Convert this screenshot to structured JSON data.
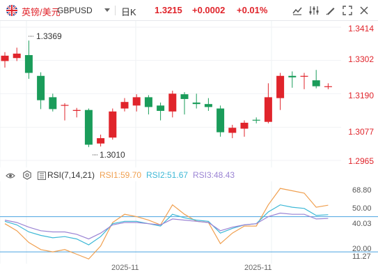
{
  "header": {
    "pair_name": "英镑/美元",
    "pair_code": "GBPUSD",
    "period": "日K",
    "price": "1.3215",
    "change": "+0.0002",
    "percent": "+0.01%",
    "tools": [
      "chart-type-icon",
      "settings-sliders-icon",
      "drawing-icon",
      "fullscreen-icon",
      "close-icon"
    ]
  },
  "price_axis": {
    "labels": [
      "1.3414",
      "1.3302",
      "1.3190",
      "1.3077",
      "1.2965"
    ]
  },
  "annotations": {
    "high": "1.3369",
    "low": "1.3010"
  },
  "rsi": {
    "title": "RSI(7,14,21)",
    "rsi1": "RSI1:59.70",
    "rsi2": "RSI2:51.67",
    "rsi3": "RSI3:48.43",
    "axis_labels": [
      "68.80",
      "50.00",
      "40.03",
      "20.00",
      "11.27"
    ]
  },
  "dates": [
    "2025-11",
    "2025-11"
  ],
  "colors": {
    "up": "#e0242b",
    "down": "#1a9c5a",
    "rsi1": "#f0a050",
    "rsi2": "#3db8d6",
    "rsi3": "#9b84d4",
    "guide": "#4aa3e0"
  },
  "chart_data": {
    "type": "candlestick",
    "price_ylim": [
      1.2965,
      1.3414
    ],
    "candles": [
      {
        "o": 1.33,
        "h": 1.333,
        "l": 1.3278,
        "c": 1.3318
      },
      {
        "o": 1.331,
        "h": 1.3345,
        "l": 1.33,
        "c": 1.3325
      },
      {
        "o": 1.332,
        "h": 1.3369,
        "l": 1.324,
        "c": 1.326
      },
      {
        "o": 1.325,
        "h": 1.3262,
        "l": 1.3138,
        "c": 1.3168
      },
      {
        "o": 1.3178,
        "h": 1.319,
        "l": 1.313,
        "c": 1.3138
      },
      {
        "o": 1.315,
        "h": 1.3158,
        "l": 1.31,
        "c": 1.3152
      },
      {
        "o": 1.3132,
        "h": 1.3142,
        "l": 1.311,
        "c": 1.3135
      },
      {
        "o": 1.3135,
        "h": 1.314,
        "l": 1.301,
        "c": 1.3018
      },
      {
        "o": 1.3022,
        "h": 1.3052,
        "l": 1.3012,
        "c": 1.304
      },
      {
        "o": 1.3042,
        "h": 1.314,
        "l": 1.3035,
        "c": 1.313
      },
      {
        "o": 1.314,
        "h": 1.3175,
        "l": 1.313,
        "c": 1.3162
      },
      {
        "o": 1.315,
        "h": 1.3188,
        "l": 1.313,
        "c": 1.3178
      },
      {
        "o": 1.3178,
        "h": 1.3185,
        "l": 1.312,
        "c": 1.3145
      },
      {
        "o": 1.315,
        "h": 1.316,
        "l": 1.31,
        "c": 1.3132
      },
      {
        "o": 1.313,
        "h": 1.32,
        "l": 1.311,
        "c": 1.319
      },
      {
        "o": 1.3188,
        "h": 1.3195,
        "l": 1.312,
        "c": 1.3172
      },
      {
        "o": 1.316,
        "h": 1.319,
        "l": 1.314,
        "c": 1.3155
      },
      {
        "o": 1.3155,
        "h": 1.3175,
        "l": 1.3132,
        "c": 1.3145
      },
      {
        "o": 1.314,
        "h": 1.315,
        "l": 1.3045,
        "c": 1.306
      },
      {
        "o": 1.3058,
        "h": 1.3085,
        "l": 1.304,
        "c": 1.3075
      },
      {
        "o": 1.3072,
        "h": 1.31,
        "l": 1.3045,
        "c": 1.3092
      },
      {
        "o": 1.3102,
        "h": 1.311,
        "l": 1.309,
        "c": 1.31
      },
      {
        "o": 1.3095,
        "h": 1.3225,
        "l": 1.309,
        "c": 1.3178
      },
      {
        "o": 1.3175,
        "h": 1.326,
        "l": 1.3135,
        "c": 1.325
      },
      {
        "o": 1.325,
        "h": 1.3265,
        "l": 1.321,
        "c": 1.3245
      },
      {
        "o": 1.325,
        "h": 1.326,
        "l": 1.3205,
        "c": 1.325
      },
      {
        "o": 1.3235,
        "h": 1.327,
        "l": 1.3208,
        "c": 1.3215
      },
      {
        "o": 1.3213,
        "h": 1.3225,
        "l": 1.3205,
        "c": 1.3215
      }
    ],
    "rsi_ylim": [
      10,
      80
    ],
    "rsi_series": [
      {
        "name": "RSI1",
        "values": [
          44,
          38,
          28,
          22,
          20,
          22,
          18,
          14,
          25,
          45,
          52,
          50,
          47,
          43,
          60,
          52,
          46,
          45,
          27,
          36,
          42,
          42,
          60,
          74,
          72,
          70,
          58,
          59.7
        ]
      },
      {
        "name": "RSI2",
        "values": [
          46,
          43,
          37,
          34,
          32,
          33,
          31,
          26,
          33,
          44,
          46,
          46,
          44,
          42,
          52,
          49,
          47,
          46,
          36,
          40,
          43,
          44,
          54,
          60,
          58,
          57,
          51,
          51.67
        ]
      },
      {
        "name": "RSI3",
        "values": [
          47,
          45,
          41,
          38,
          37,
          37,
          35,
          31,
          36,
          43,
          45,
          45,
          44,
          43,
          48,
          47,
          46,
          45,
          38,
          41,
          43,
          44,
          50,
          53,
          52,
          52,
          48,
          48.43
        ]
      }
    ],
    "rsi_guides": [
      50,
      20
    ]
  }
}
